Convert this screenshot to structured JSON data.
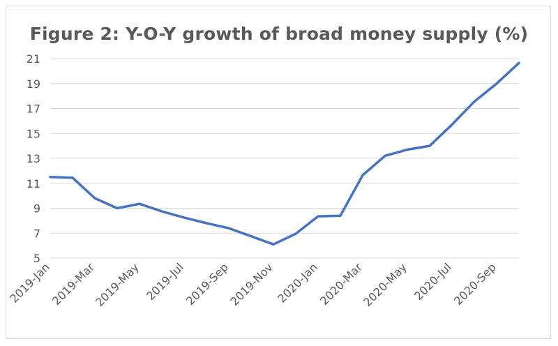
{
  "chart_data": {
    "type": "line",
    "title": "Figure 2: Y-O-Y growth of broad money supply (%)",
    "xlabel": "",
    "ylabel": "",
    "x": [
      "2019-Jan",
      "2019-Feb",
      "2019-Mar",
      "2019-Apr",
      "2019-May",
      "2019-Jun",
      "2019-Jul",
      "2019-Aug",
      "2019-Sep",
      "2019-Oct",
      "2019-Nov",
      "2019-Dec",
      "2020-Jan",
      "2020-Feb",
      "2020-Mar",
      "2020-Apr",
      "2020-May",
      "2020-Jun",
      "2020-Jul",
      "2020-Aug",
      "2020-Sep",
      "2020-Oct"
    ],
    "x_tick_labels": [
      "2019-Jan",
      "2019-Mar",
      "2019-May",
      "2019-Jul",
      "2019-Sep",
      "2019-Nov",
      "2020-Jan",
      "2020-Mar",
      "2020-May",
      "2020-Jul",
      "2020-Sep"
    ],
    "series": [
      {
        "values": [
          11.5,
          11.45,
          9.8,
          9.0,
          9.35,
          8.75,
          8.25,
          7.8,
          7.4,
          6.75,
          6.1,
          6.95,
          8.35,
          8.4,
          11.65,
          13.2,
          13.7,
          14.0,
          15.7,
          17.55,
          19.0,
          20.65
        ]
      }
    ],
    "ylim": [
      5,
      21
    ],
    "yticks": [
      5,
      7,
      9,
      11,
      13,
      15,
      17,
      19,
      21
    ],
    "grid": true,
    "line_color": "#4472c4"
  }
}
